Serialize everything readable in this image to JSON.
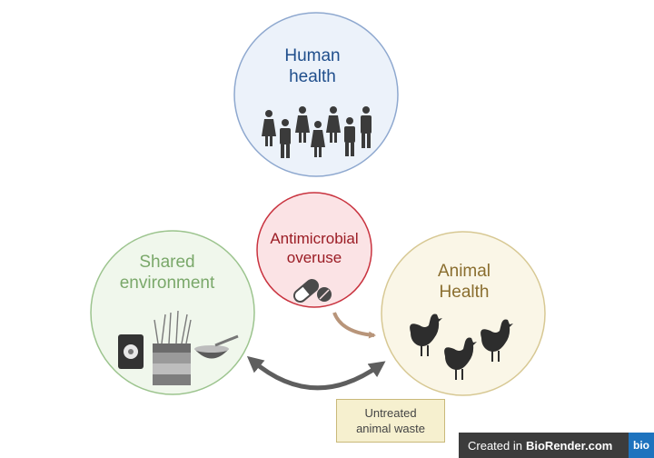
{
  "nodes": {
    "human": {
      "label": "Human\nhealth",
      "color": "#1f4e8c",
      "fill": "#ecf2fa",
      "stroke": "#8ea8cf"
    },
    "environment": {
      "label": "Shared\nenvironment",
      "color": "#7aa86a",
      "fill": "#f0f7ec",
      "stroke": "#9cc48e"
    },
    "animal": {
      "label": "Animal\nHealth",
      "color": "#8a6e2f",
      "fill": "#faf6e7",
      "stroke": "#d7c893"
    },
    "amr": {
      "label": "Antimicrobial\noveruse",
      "color": "#9b1c24",
      "fill": "#fbe3e5",
      "stroke": "#c9333f"
    }
  },
  "waste_box": {
    "label": "Untreated\nanimal waste"
  },
  "credit": {
    "prefix": "Created in",
    "brand": "BioRender.com",
    "logo": "bio"
  },
  "icons": [
    "people-icon",
    "pill-icon",
    "chicken-icon",
    "soil-icon",
    "seed-bag-icon",
    "grain-bowl-icon"
  ]
}
